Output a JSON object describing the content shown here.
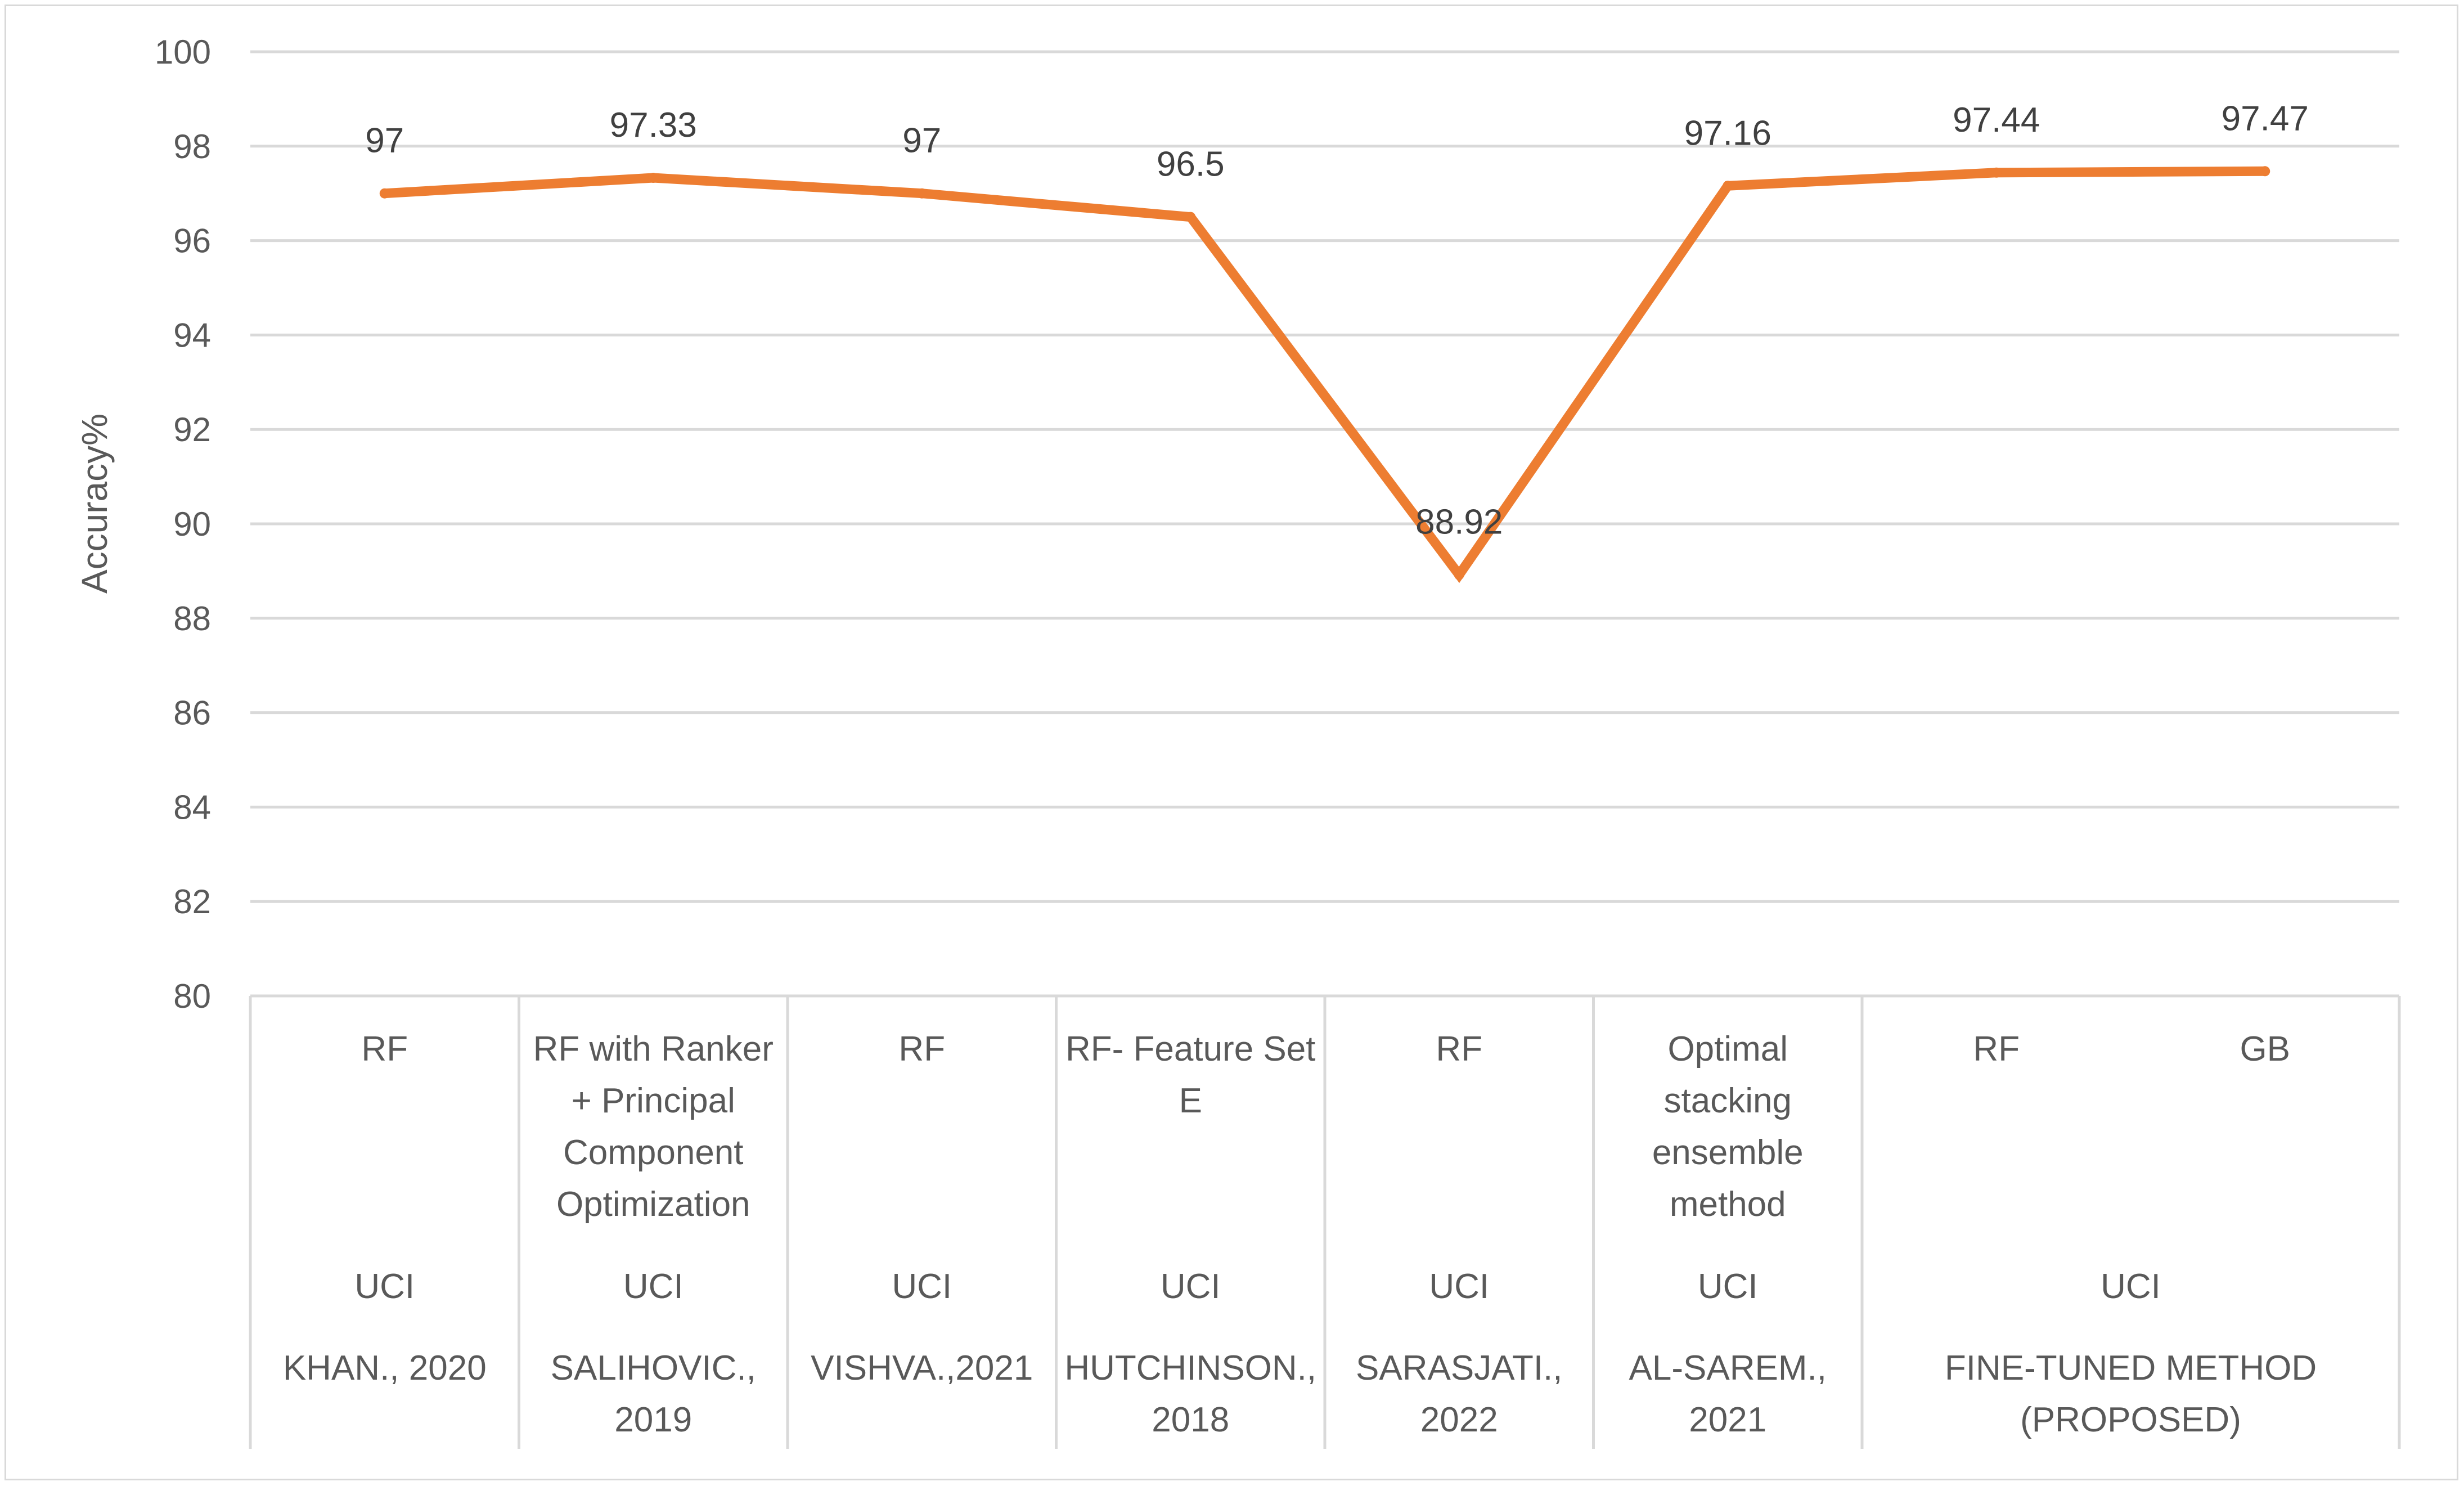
{
  "chart_data": {
    "type": "line",
    "ylabel": "Accuracy%",
    "ylim": [
      80,
      100
    ],
    "yticks": [
      "80",
      "82",
      "84",
      "86",
      "88",
      "90",
      "92",
      "94",
      "96",
      "98",
      "100"
    ],
    "grid": true,
    "series": [
      {
        "values": [
          97,
          97.33,
          97,
          96.5,
          88.92,
          97.16,
          97.44,
          97.47
        ],
        "labels": [
          "97",
          "97.33",
          "97",
          "96.5",
          "88.92",
          "97.16",
          "97.44",
          "97.47"
        ],
        "color": "#ED7D31"
      }
    ],
    "categories": [
      {
        "method": [
          "RF"
        ],
        "dataset": "UCI",
        "study": [
          "KHAN., 2020"
        ]
      },
      {
        "method": [
          "RF with Ranker",
          "+ Principal",
          "Component",
          "Optimization"
        ],
        "dataset": "UCI",
        "study": [
          "SALIHOVIC.,",
          "2019"
        ]
      },
      {
        "method": [
          "RF"
        ],
        "dataset": "UCI",
        "study": [
          "VISHVA.,2021"
        ]
      },
      {
        "method": [
          "RF- Feature Set",
          "E"
        ],
        "dataset": "UCI",
        "study": [
          "HUTCHINSON.,",
          "2018"
        ]
      },
      {
        "method": [
          "RF"
        ],
        "dataset": "UCI",
        "study": [
          "SARASJATI.,",
          "2022"
        ]
      },
      {
        "method": [
          "Optimal",
          "stacking",
          "ensemble",
          "method"
        ],
        "dataset": "UCI",
        "study": [
          "AL-SAREM.,",
          "2021"
        ]
      },
      {
        "method": [
          "RF"
        ],
        "dataset": "UCI",
        "study": [
          "FINE-TUNED METHOD",
          "(PROPOSED)"
        ]
      },
      {
        "method": [
          "GB"
        ],
        "dataset": "UCI",
        "study": [
          "FINE-TUNED METHOD",
          "(PROPOSED)"
        ]
      }
    ],
    "groups": [
      {
        "span": [
          0,
          0
        ],
        "dataset": "UCI",
        "study": [
          "KHAN., 2020"
        ]
      },
      {
        "span": [
          1,
          1
        ],
        "dataset": "UCI",
        "study": [
          "SALIHOVIC.,",
          "2019"
        ]
      },
      {
        "span": [
          2,
          2
        ],
        "dataset": "UCI",
        "study": [
          "VISHVA.,2021"
        ]
      },
      {
        "span": [
          3,
          3
        ],
        "dataset": "UCI",
        "study": [
          "HUTCHINSON.,",
          "2018"
        ]
      },
      {
        "span": [
          4,
          4
        ],
        "dataset": "UCI",
        "study": [
          "SARASJATI.,",
          "2022"
        ]
      },
      {
        "span": [
          5,
          5
        ],
        "dataset": "UCI",
        "study": [
          "AL-SAREM.,",
          "2021"
        ]
      },
      {
        "span": [
          6,
          7
        ],
        "dataset": "UCI",
        "study": [
          "FINE-TUNED METHOD",
          "(PROPOSED)"
        ]
      }
    ],
    "gridline_color": "#d9d9d9",
    "axis_color": "#d9d9d9"
  }
}
